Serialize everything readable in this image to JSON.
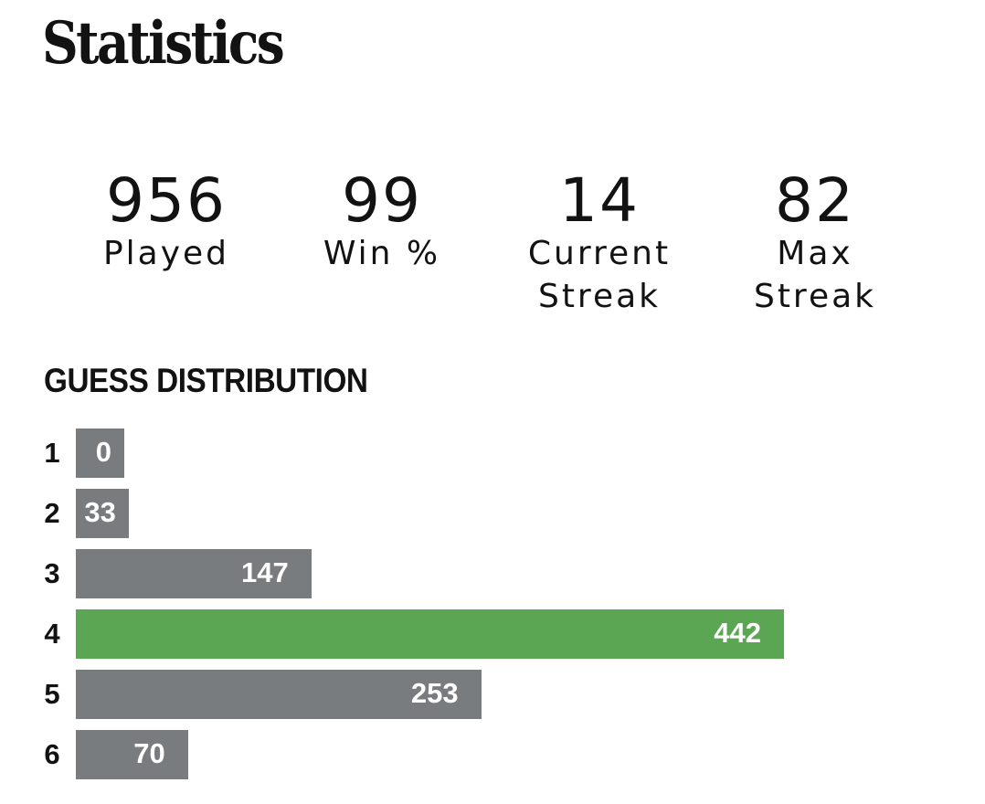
{
  "title": "Statistics",
  "stats": [
    {
      "value": "956",
      "label_lines": [
        "Played"
      ]
    },
    {
      "value": "99",
      "label_lines": [
        "Win %"
      ]
    },
    {
      "value": "14",
      "label_lines": [
        "Current",
        "Streak"
      ]
    },
    {
      "value": "82",
      "label_lines": [
        "Max",
        "Streak"
      ]
    }
  ],
  "guess_distribution": {
    "title": "GUESS DISTRIBUTION",
    "highlight_guess": 4,
    "rows": [
      {
        "guess": "1",
        "count": 0
      },
      {
        "guess": "2",
        "count": 33
      },
      {
        "guess": "3",
        "count": 147
      },
      {
        "guess": "4",
        "count": 442
      },
      {
        "guess": "5",
        "count": 253
      },
      {
        "guess": "6",
        "count": 70
      }
    ]
  },
  "colors": {
    "bar_default": "#787c7e",
    "bar_highlight": "#5aa653",
    "text": "#121212",
    "bar_text": "#ffffff"
  }
}
